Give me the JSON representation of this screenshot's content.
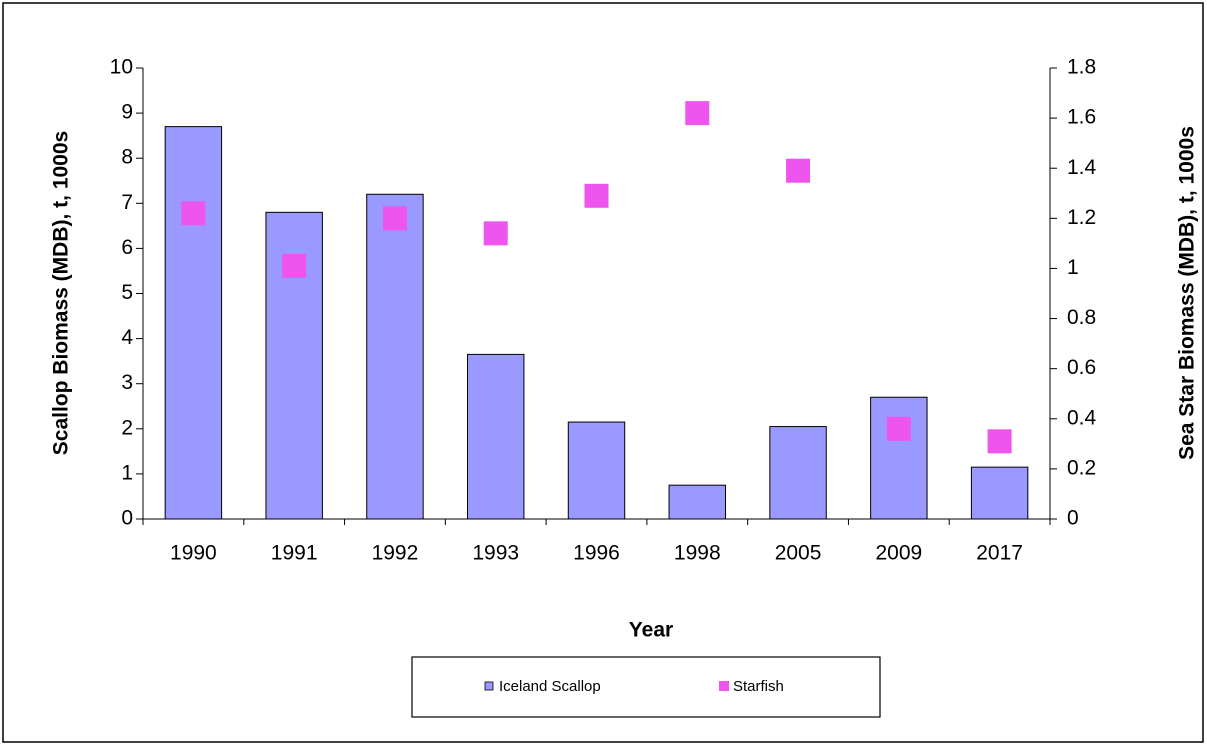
{
  "chart_data": {
    "type": "bar",
    "x_label": "Year",
    "y_label": "Scallop Biomass (MDB), t, 1000s",
    "y2_label": "Sea Star Biomass (MDB), t, 1000s",
    "categories": [
      "1990",
      "1991",
      "1992",
      "1993",
      "1996",
      "1998",
      "2005",
      "2009",
      "2017"
    ],
    "series": [
      {
        "name": "Iceland Scallop",
        "type": "bar",
        "color": "#9999ff",
        "values": [
          8.7,
          6.8,
          7.2,
          3.65,
          2.15,
          0.75,
          2.05,
          2.7,
          1.15
        ]
      },
      {
        "name": "Starfish",
        "type": "scatter",
        "axis": "y2",
        "color": "#ee55ee",
        "values": [
          1.22,
          1.01,
          1.2,
          1.14,
          1.29,
          1.62,
          1.39,
          0.36,
          0.31
        ]
      }
    ],
    "ylim": [
      0,
      10
    ],
    "yticks": [
      0,
      1,
      2,
      3,
      4,
      5,
      6,
      7,
      8,
      9,
      10
    ],
    "y2lim": [
      0,
      1.8
    ],
    "y2ticks": [
      0,
      0.2,
      0.4,
      0.6,
      0.8,
      1,
      1.2,
      1.4,
      1.6,
      1.8
    ],
    "grid": false,
    "legend": "bottom"
  }
}
